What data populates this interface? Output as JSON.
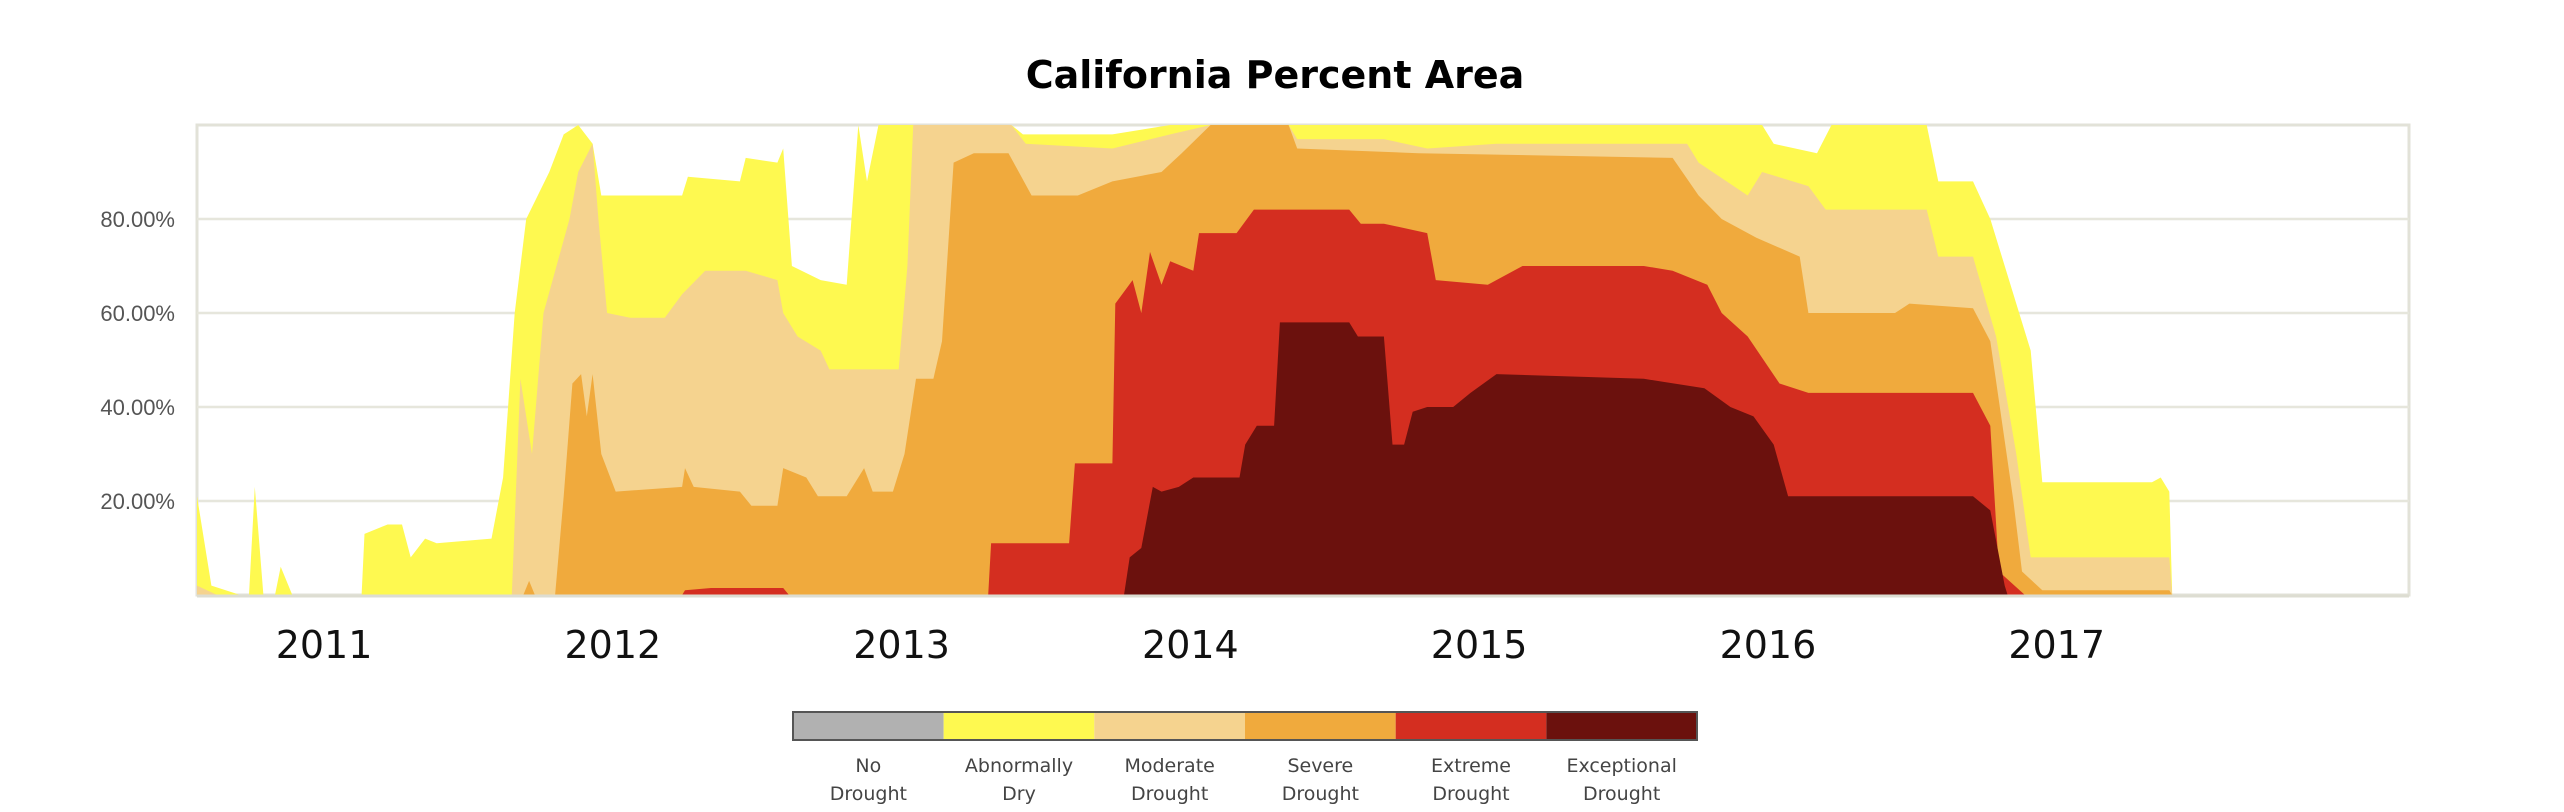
{
  "chart_data": {
    "type": "area",
    "stacking": "cumulative (each series = percent area in that category or worse)",
    "title": "California Percent Area",
    "xlabel": "",
    "ylabel": "",
    "xlim": [
      2010.56,
      2018.22
    ],
    "ylim": [
      0,
      100
    ],
    "grid": true,
    "y_ticks": [
      {
        "v": 20,
        "label": "20.00%"
      },
      {
        "v": 40,
        "label": "40.00%"
      },
      {
        "v": 60,
        "label": "60.00%"
      },
      {
        "v": 80,
        "label": "80.00%"
      }
    ],
    "x_ticks": [
      {
        "v": 2011,
        "label": "2011"
      },
      {
        "v": 2012,
        "label": "2012"
      },
      {
        "v": 2013,
        "label": "2013"
      },
      {
        "v": 2014,
        "label": "2014"
      },
      {
        "v": 2015,
        "label": "2015"
      },
      {
        "v": 2016,
        "label": "2016"
      },
      {
        "v": 2017,
        "label": "2017"
      }
    ],
    "legend_position": "bottom-center",
    "legend": [
      {
        "line1": "No",
        "line2": "Drought",
        "color": "#b1b1b1"
      },
      {
        "line1": "Abnormally",
        "line2": "Dry",
        "color": "#fef950"
      },
      {
        "line1": "Moderate",
        "line2": "Drought",
        "color": "#f5d38f"
      },
      {
        "line1": "Severe",
        "line2": "Drought",
        "color": "#f0aa3d"
      },
      {
        "line1": "Extreme",
        "line2": "Drought",
        "color": "#d42e20"
      },
      {
        "line1": "Exceptional",
        "line2": "Drought",
        "color": "#6b110d"
      }
    ],
    "series": [
      {
        "name": "D0-D4 (Abnormally Dry or worse)",
        "color": "#fef950",
        "points": [
          [
            2010.56,
            21
          ],
          [
            2010.61,
            2
          ],
          [
            2010.71,
            0
          ],
          [
            2010.74,
            0
          ],
          [
            2010.76,
            23
          ],
          [
            2010.79,
            0
          ],
          [
            2010.83,
            0
          ],
          [
            2010.85,
            6
          ],
          [
            2010.89,
            0
          ],
          [
            2011.13,
            0
          ],
          [
            2011.14,
            13
          ],
          [
            2011.22,
            15
          ],
          [
            2011.27,
            15
          ],
          [
            2011.3,
            8
          ],
          [
            2011.35,
            12
          ],
          [
            2011.39,
            11
          ],
          [
            2011.58,
            12
          ],
          [
            2011.62,
            25
          ],
          [
            2011.66,
            60
          ],
          [
            2011.7,
            80
          ],
          [
            2011.78,
            90
          ],
          [
            2011.83,
            98
          ],
          [
            2011.88,
            100
          ],
          [
            2011.93,
            96
          ],
          [
            2011.96,
            85
          ],
          [
            2012.24,
            85
          ],
          [
            2012.26,
            89
          ],
          [
            2012.44,
            88
          ],
          [
            2012.46,
            93
          ],
          [
            2012.57,
            92
          ],
          [
            2012.59,
            95
          ],
          [
            2012.62,
            70
          ],
          [
            2012.72,
            67
          ],
          [
            2012.81,
            66
          ],
          [
            2012.85,
            100
          ],
          [
            2012.88,
            88
          ],
          [
            2012.92,
            100
          ],
          [
            2013.38,
            100
          ],
          [
            2013.42,
            98
          ],
          [
            2013.73,
            98
          ],
          [
            2013.93,
            100
          ],
          [
            2015.98,
            100
          ],
          [
            2016.02,
            96
          ],
          [
            2016.17,
            94
          ],
          [
            2016.22,
            100
          ],
          [
            2016.55,
            100
          ],
          [
            2016.59,
            88
          ],
          [
            2016.71,
            88
          ],
          [
            2016.77,
            80
          ],
          [
            2016.91,
            52
          ],
          [
            2016.95,
            24
          ],
          [
            2017.33,
            24
          ],
          [
            2017.36,
            25
          ],
          [
            2017.39,
            22
          ],
          [
            2017.4,
            0
          ]
        ]
      },
      {
        "name": "D1-D4 (Moderate Drought or worse)",
        "color": "#f5d38f",
        "points": [
          [
            2010.56,
            2
          ],
          [
            2010.63,
            0
          ],
          [
            2011.65,
            0
          ],
          [
            2011.68,
            46
          ],
          [
            2011.72,
            30
          ],
          [
            2011.76,
            60
          ],
          [
            2011.85,
            80
          ],
          [
            2011.88,
            90
          ],
          [
            2011.93,
            96
          ],
          [
            2011.95,
            80
          ],
          [
            2011.98,
            60
          ],
          [
            2012.06,
            59
          ],
          [
            2012.18,
            59
          ],
          [
            2012.24,
            64
          ],
          [
            2012.32,
            69
          ],
          [
            2012.46,
            69
          ],
          [
            2012.57,
            67
          ],
          [
            2012.59,
            60
          ],
          [
            2012.64,
            55
          ],
          [
            2012.72,
            52
          ],
          [
            2012.75,
            48
          ],
          [
            2012.99,
            48
          ],
          [
            2013.02,
            70
          ],
          [
            2013.04,
            100
          ],
          [
            2013.38,
            100
          ],
          [
            2013.43,
            96
          ],
          [
            2013.73,
            95
          ],
          [
            2013.93,
            98
          ],
          [
            2014.07,
            100
          ],
          [
            2014.34,
            100
          ],
          [
            2014.37,
            97
          ],
          [
            2014.67,
            97
          ],
          [
            2014.82,
            95
          ],
          [
            2015.06,
            96
          ],
          [
            2015.72,
            96
          ],
          [
            2015.76,
            92
          ],
          [
            2015.93,
            85
          ],
          [
            2015.98,
            90
          ],
          [
            2016.14,
            87
          ],
          [
            2016.2,
            82
          ],
          [
            2016.55,
            82
          ],
          [
            2016.59,
            72
          ],
          [
            2016.71,
            72
          ],
          [
            2016.79,
            55
          ],
          [
            2016.86,
            30
          ],
          [
            2016.91,
            8
          ],
          [
            2017.39,
            8
          ],
          [
            2017.4,
            0
          ]
        ]
      },
      {
        "name": "D2-D4 (Severe Drought or worse)",
        "color": "#f0aa3d",
        "points": [
          [
            2011.69,
            0
          ],
          [
            2011.71,
            3
          ],
          [
            2011.73,
            0
          ],
          [
            2011.8,
            0
          ],
          [
            2011.83,
            21
          ],
          [
            2011.86,
            45
          ],
          [
            2011.89,
            47
          ],
          [
            2011.91,
            38
          ],
          [
            2011.93,
            47
          ],
          [
            2011.96,
            30
          ],
          [
            2012.01,
            22
          ],
          [
            2012.24,
            23
          ],
          [
            2012.25,
            27
          ],
          [
            2012.28,
            23
          ],
          [
            2012.44,
            22
          ],
          [
            2012.48,
            19
          ],
          [
            2012.57,
            19
          ],
          [
            2012.59,
            27
          ],
          [
            2012.67,
            25
          ],
          [
            2012.71,
            21
          ],
          [
            2012.81,
            21
          ],
          [
            2012.87,
            27
          ],
          [
            2012.9,
            22
          ],
          [
            2012.97,
            22
          ],
          [
            2013.01,
            30
          ],
          [
            2013.05,
            46
          ],
          [
            2013.11,
            46
          ],
          [
            2013.14,
            54
          ],
          [
            2013.18,
            92
          ],
          [
            2013.25,
            94
          ],
          [
            2013.37,
            94
          ],
          [
            2013.45,
            85
          ],
          [
            2013.61,
            85
          ],
          [
            2013.73,
            88
          ],
          [
            2013.9,
            90
          ],
          [
            2013.97,
            94
          ],
          [
            2014.07,
            100
          ],
          [
            2014.34,
            100
          ],
          [
            2014.37,
            95
          ],
          [
            2014.79,
            94
          ],
          [
            2015.67,
            93
          ],
          [
            2015.76,
            85
          ],
          [
            2015.84,
            80
          ],
          [
            2015.96,
            76
          ],
          [
            2016.11,
            72
          ],
          [
            2016.14,
            60
          ],
          [
            2016.44,
            60
          ],
          [
            2016.49,
            62
          ],
          [
            2016.71,
            61
          ],
          [
            2016.77,
            54
          ],
          [
            2016.85,
            20
          ],
          [
            2016.88,
            5
          ],
          [
            2016.95,
            1
          ],
          [
            2017.39,
            1
          ],
          [
            2017.4,
            0
          ]
        ]
      },
      {
        "name": "D3-D4 (Extreme Drought or worse)",
        "color": "#d42e20",
        "points": [
          [
            2012.24,
            0
          ],
          [
            2012.25,
            1
          ],
          [
            2012.34,
            1.5
          ],
          [
            2012.59,
            1.5
          ],
          [
            2012.61,
            0
          ],
          [
            2013.3,
            0
          ],
          [
            2013.31,
            11
          ],
          [
            2013.58,
            11
          ],
          [
            2013.6,
            28
          ],
          [
            2013.73,
            28
          ],
          [
            2013.74,
            62
          ],
          [
            2013.8,
            67
          ],
          [
            2013.83,
            60
          ],
          [
            2013.86,
            73
          ],
          [
            2013.9,
            66
          ],
          [
            2013.93,
            71
          ],
          [
            2014.01,
            69
          ],
          [
            2014.03,
            77
          ],
          [
            2014.16,
            77
          ],
          [
            2014.22,
            82
          ],
          [
            2014.55,
            82
          ],
          [
            2014.59,
            79
          ],
          [
            2014.67,
            79
          ],
          [
            2014.82,
            77
          ],
          [
            2014.85,
            67
          ],
          [
            2015.03,
            66
          ],
          [
            2015.15,
            70
          ],
          [
            2015.57,
            70
          ],
          [
            2015.67,
            69
          ],
          [
            2015.79,
            66
          ],
          [
            2015.84,
            60
          ],
          [
            2015.93,
            55
          ],
          [
            2016.04,
            45
          ],
          [
            2016.14,
            43
          ],
          [
            2016.71,
            43
          ],
          [
            2016.77,
            36
          ],
          [
            2016.8,
            5
          ],
          [
            2016.89,
            0
          ]
        ]
      },
      {
        "name": "D4 (Exceptional Drought)",
        "color": "#6b110d",
        "points": [
          [
            2013.77,
            0
          ],
          [
            2013.79,
            8
          ],
          [
            2013.83,
            10
          ],
          [
            2013.87,
            23
          ],
          [
            2013.9,
            22
          ],
          [
            2013.96,
            23
          ],
          [
            2014.01,
            25
          ],
          [
            2014.17,
            25
          ],
          [
            2014.19,
            32
          ],
          [
            2014.23,
            36
          ],
          [
            2014.29,
            36
          ],
          [
            2014.31,
            58
          ],
          [
            2014.55,
            58
          ],
          [
            2014.58,
            55
          ],
          [
            2014.67,
            55
          ],
          [
            2014.7,
            32
          ],
          [
            2014.74,
            32
          ],
          [
            2014.77,
            39
          ],
          [
            2014.82,
            40
          ],
          [
            2014.91,
            40
          ],
          [
            2014.97,
            43
          ],
          [
            2015.06,
            47
          ],
          [
            2015.57,
            46
          ],
          [
            2015.78,
            44
          ],
          [
            2015.87,
            40
          ],
          [
            2015.95,
            38
          ],
          [
            2016.02,
            32
          ],
          [
            2016.07,
            21
          ],
          [
            2016.71,
            21
          ],
          [
            2016.77,
            18
          ],
          [
            2016.82,
            2
          ],
          [
            2016.83,
            0
          ]
        ]
      }
    ]
  }
}
